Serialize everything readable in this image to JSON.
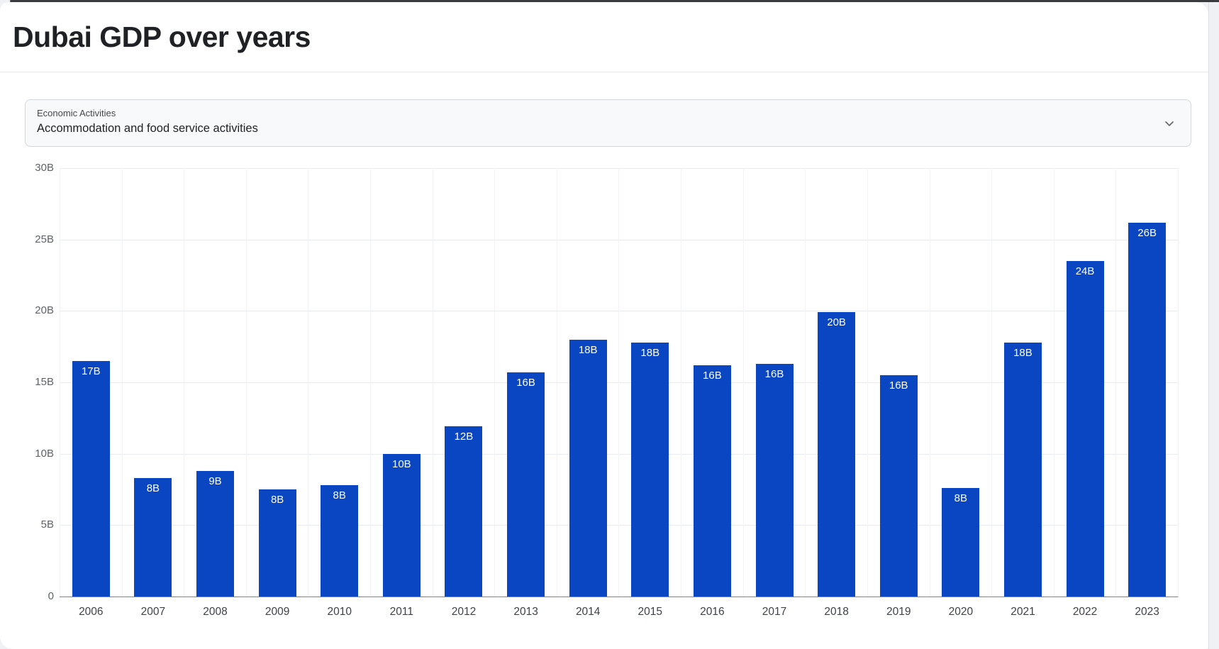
{
  "header": {
    "title": "Dubai GDP over years"
  },
  "filter": {
    "label": "Economic Activities",
    "value": "Accommodation and food service activities",
    "icon": "chevron-down-icon"
  },
  "chart_data": {
    "type": "bar",
    "title": "Dubai GDP over years",
    "xlabel": "",
    "ylabel": "",
    "unit": "B",
    "categories": [
      "2006",
      "2007",
      "2008",
      "2009",
      "2010",
      "2011",
      "2012",
      "2013",
      "2014",
      "2015",
      "2016",
      "2017",
      "2018",
      "2019",
      "2020",
      "2021",
      "2022",
      "2023"
    ],
    "values": [
      16.5,
      8.3,
      8.8,
      7.5,
      7.8,
      10.0,
      11.9,
      15.7,
      18.0,
      17.8,
      16.2,
      16.3,
      19.9,
      15.5,
      7.6,
      17.8,
      23.5,
      26.2
    ],
    "bar_labels": [
      "17B",
      "8B",
      "9B",
      "8B",
      "8B",
      "10B",
      "12B",
      "16B",
      "18B",
      "18B",
      "16B",
      "16B",
      "20B",
      "16B",
      "8B",
      "18B",
      "24B",
      "26B"
    ],
    "ylim": [
      0,
      30
    ],
    "ytick_values": [
      0,
      5,
      10,
      15,
      20,
      25,
      30
    ],
    "ytick_labels": [
      "0",
      "5B",
      "10B",
      "15B",
      "20B",
      "25B",
      "30B"
    ],
    "grid": "horizontal",
    "legend": "none",
    "colors": {
      "bar": "#0b46c2",
      "bar_label": "#ffffff",
      "axis_label": "#5f6368",
      "gridline": "#e9ebee",
      "baseline": "#7e8489"
    }
  }
}
